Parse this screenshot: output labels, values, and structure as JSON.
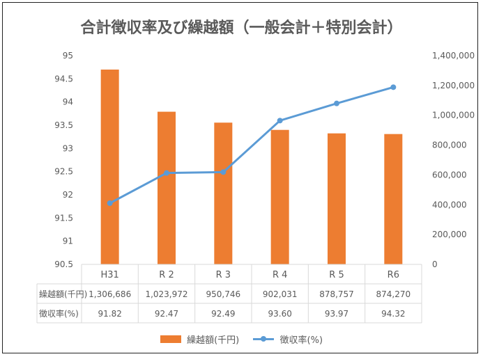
{
  "chart_data": {
    "type": "bar+line",
    "title": "合計徴収率及び繰越額（一般会計＋特別会計）",
    "categories": [
      "H31",
      "R 2",
      "R 3",
      "R 4",
      "R 5",
      "R6"
    ],
    "series": [
      {
        "name": "繰越額(千円)",
        "type": "bar",
        "axis": "right",
        "color": "#ED7D31",
        "values": [
          1306686,
          1023972,
          950746,
          902031,
          878757,
          874270
        ],
        "labels": [
          "1,306,686",
          "1,023,972",
          "950,746",
          "902,031",
          "878,757",
          "874,270"
        ]
      },
      {
        "name": "徴収率(%)",
        "type": "line",
        "axis": "left",
        "color": "#5B9BD5",
        "values": [
          91.82,
          92.47,
          92.49,
          93.6,
          93.97,
          94.32
        ],
        "labels": [
          "91.82",
          "92.47",
          "92.49",
          "93.60",
          "93.97",
          "94.32"
        ]
      }
    ],
    "left_axis": {
      "ylim": [
        90.5,
        95
      ],
      "ticks": [
        "90.5",
        "91",
        "91.5",
        "92",
        "92.5",
        "93",
        "93.5",
        "94",
        "94.5",
        "95"
      ]
    },
    "right_axis": {
      "ylim": [
        0,
        1400000
      ],
      "ticks": [
        "0",
        "200,000",
        "400,000",
        "600,000",
        "800,000",
        "1,000,000",
        "1,200,000",
        "1,400,000"
      ]
    },
    "grid": false,
    "legend": "bottom",
    "data_table": true
  }
}
